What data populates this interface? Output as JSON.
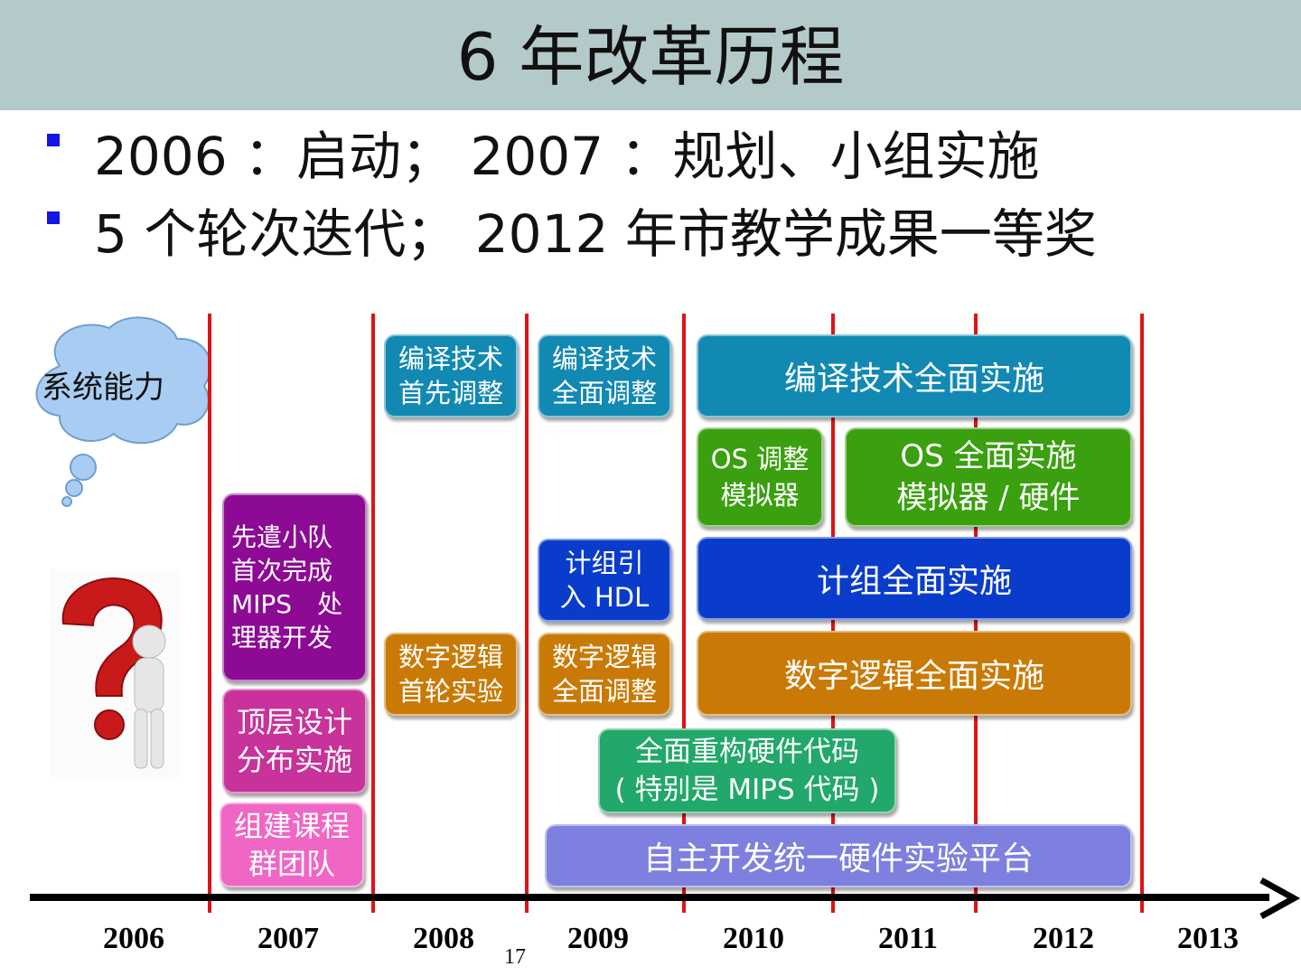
{
  "title": "6 年改革历程",
  "bullets": [
    "2006 ：启动； 2007 ：规划、小组实施",
    "5 个轮次迭代； 2012 年市教学成果一等奖"
  ],
  "cloud_label": "系统能力",
  "years": [
    "2006",
    "2007",
    "2008",
    "2009",
    "2010",
    "2011",
    "2012",
    "2013"
  ],
  "page_number": "17",
  "boxes": {
    "compile_first": "编译技术\n首先调整",
    "compile_full_adjust": "编译技术\n全面调整",
    "compile_full_impl": "编译技术全面实施",
    "os_adjust": "OS 调整\n模拟器",
    "os_full_impl": "OS 全面实施\n模拟器 / 硬件",
    "advance_team": "先遣小队\n首次完成\nMIPS　处\n理器开发",
    "co_hdl": "计组引\n入 HDL",
    "co_full_impl": "计组全面实施",
    "dl_first": "数字逻辑\n首轮实验",
    "dl_full_adjust": "数字逻辑\n全面调整",
    "dl_full_impl": "数字逻辑全面实施",
    "top_design": "顶层设计\n分布实施",
    "hw_rebuild": "全面重构硬件代码\n( 特别是 MIPS 代码 )",
    "team_build": "组建课程\n群团队",
    "platform": "自主开发统一硬件实验平台"
  },
  "colors": {
    "title_bar": "#b4c9c9",
    "bullet_marker": "#1414e6",
    "timeline_divider": "#e01414",
    "teal": "#1289b3",
    "green": "#3aa010",
    "blue": "#0a3ccc",
    "orange": "#c97a06",
    "purple": "#8d0a94",
    "magenta": "#c8329a",
    "pink": "#f066c4",
    "sea_green": "#22a86a",
    "lavender": "#7d80de",
    "cloud": "#a9cdf2"
  },
  "icons": [
    "thought-cloud-icon",
    "question-mark-figure-icon",
    "axis-arrow-icon"
  ]
}
